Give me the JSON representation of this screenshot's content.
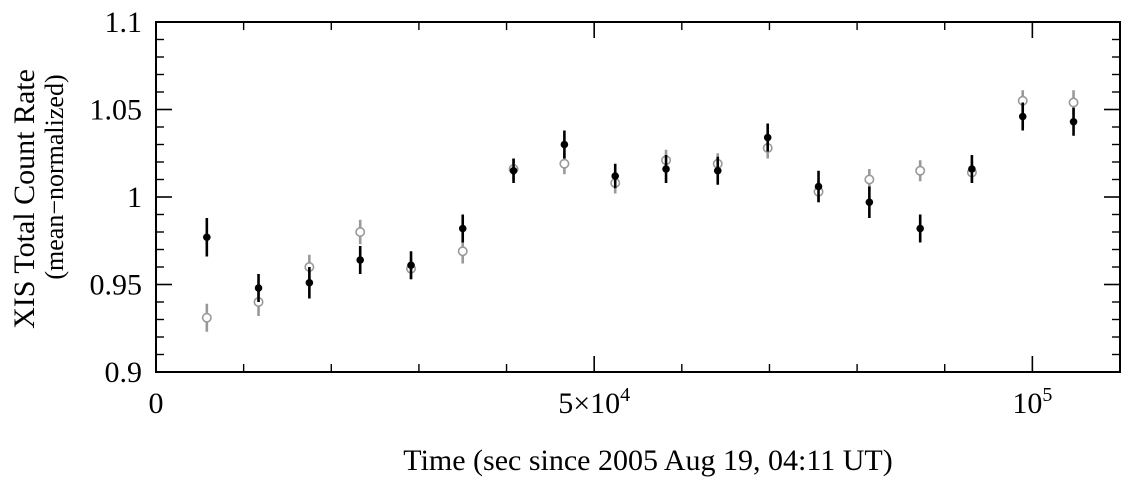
{
  "chart_data": {
    "type": "scatter",
    "title": "",
    "xlabel": "Time (sec since 2005 Aug 19, 04:11 UT)",
    "ylabel": "XIS Total Count Rate",
    "ylabel_sub": "(mean−normalized)",
    "xlim": [
      0,
      110000
    ],
    "ylim": [
      0.9,
      1.1
    ],
    "x_ticks": [
      {
        "value": 0,
        "label": "0"
      },
      {
        "value": 50000,
        "label": "5×10",
        "sup": "4"
      },
      {
        "value": 100000,
        "label": "10",
        "sup": "5"
      }
    ],
    "y_ticks": [
      {
        "value": 0.9,
        "label": "0.9"
      },
      {
        "value": 0.95,
        "label": "0.95"
      },
      {
        "value": 1.0,
        "label": "1"
      },
      {
        "value": 1.05,
        "label": "1.05"
      },
      {
        "value": 1.1,
        "label": "1.1"
      }
    ],
    "x_minor_step": 10000,
    "y_minor_step": 0.01,
    "grid": false,
    "series": [
      {
        "marker": "filled-circle",
        "color": "#000000",
        "points": [
          {
            "x": 5800,
            "y": 0.977,
            "err": 0.011
          },
          {
            "x": 11700,
            "y": 0.948,
            "err": 0.008
          },
          {
            "x": 17500,
            "y": 0.951,
            "err": 0.009
          },
          {
            "x": 23300,
            "y": 0.964,
            "err": 0.008
          },
          {
            "x": 29100,
            "y": 0.961,
            "err": 0.008
          },
          {
            "x": 35000,
            "y": 0.982,
            "err": 0.008
          },
          {
            "x": 40800,
            "y": 1.015,
            "err": 0.007
          },
          {
            "x": 46600,
            "y": 1.03,
            "err": 0.008
          },
          {
            "x": 52400,
            "y": 1.012,
            "err": 0.007
          },
          {
            "x": 58200,
            "y": 1.016,
            "err": 0.008
          },
          {
            "x": 64100,
            "y": 1.015,
            "err": 0.008
          },
          {
            "x": 69800,
            "y": 1.034,
            "err": 0.008
          },
          {
            "x": 75600,
            "y": 1.006,
            "err": 0.009
          },
          {
            "x": 81400,
            "y": 0.997,
            "err": 0.009
          },
          {
            "x": 87200,
            "y": 0.982,
            "err": 0.008
          },
          {
            "x": 93100,
            "y": 1.016,
            "err": 0.008
          },
          {
            "x": 98900,
            "y": 1.046,
            "err": 0.008
          },
          {
            "x": 104700,
            "y": 1.043,
            "err": 0.008
          }
        ]
      },
      {
        "marker": "open-circle",
        "color": "#999999",
        "points": [
          {
            "x": 5800,
            "y": 0.931,
            "err": 0.008
          },
          {
            "x": 11700,
            "y": 0.94,
            "err": 0.008
          },
          {
            "x": 17500,
            "y": 0.96,
            "err": 0.007
          },
          {
            "x": 23300,
            "y": 0.98,
            "err": 0.007
          },
          {
            "x": 29100,
            "y": 0.959,
            "err": 0.006
          },
          {
            "x": 35000,
            "y": 0.969,
            "err": 0.007
          },
          {
            "x": 40800,
            "y": 1.016,
            "err": 0.006
          },
          {
            "x": 46600,
            "y": 1.019,
            "err": 0.006
          },
          {
            "x": 52400,
            "y": 1.008,
            "err": 0.006
          },
          {
            "x": 58200,
            "y": 1.021,
            "err": 0.006
          },
          {
            "x": 64100,
            "y": 1.019,
            "err": 0.006
          },
          {
            "x": 69800,
            "y": 1.028,
            "err": 0.006
          },
          {
            "x": 75600,
            "y": 1.003,
            "err": 0.006
          },
          {
            "x": 81400,
            "y": 1.01,
            "err": 0.006
          },
          {
            "x": 87200,
            "y": 1.015,
            "err": 0.006
          },
          {
            "x": 93100,
            "y": 1.014,
            "err": 0.006
          },
          {
            "x": 98900,
            "y": 1.055,
            "err": 0.006
          },
          {
            "x": 104700,
            "y": 1.054,
            "err": 0.007
          }
        ]
      }
    ]
  }
}
